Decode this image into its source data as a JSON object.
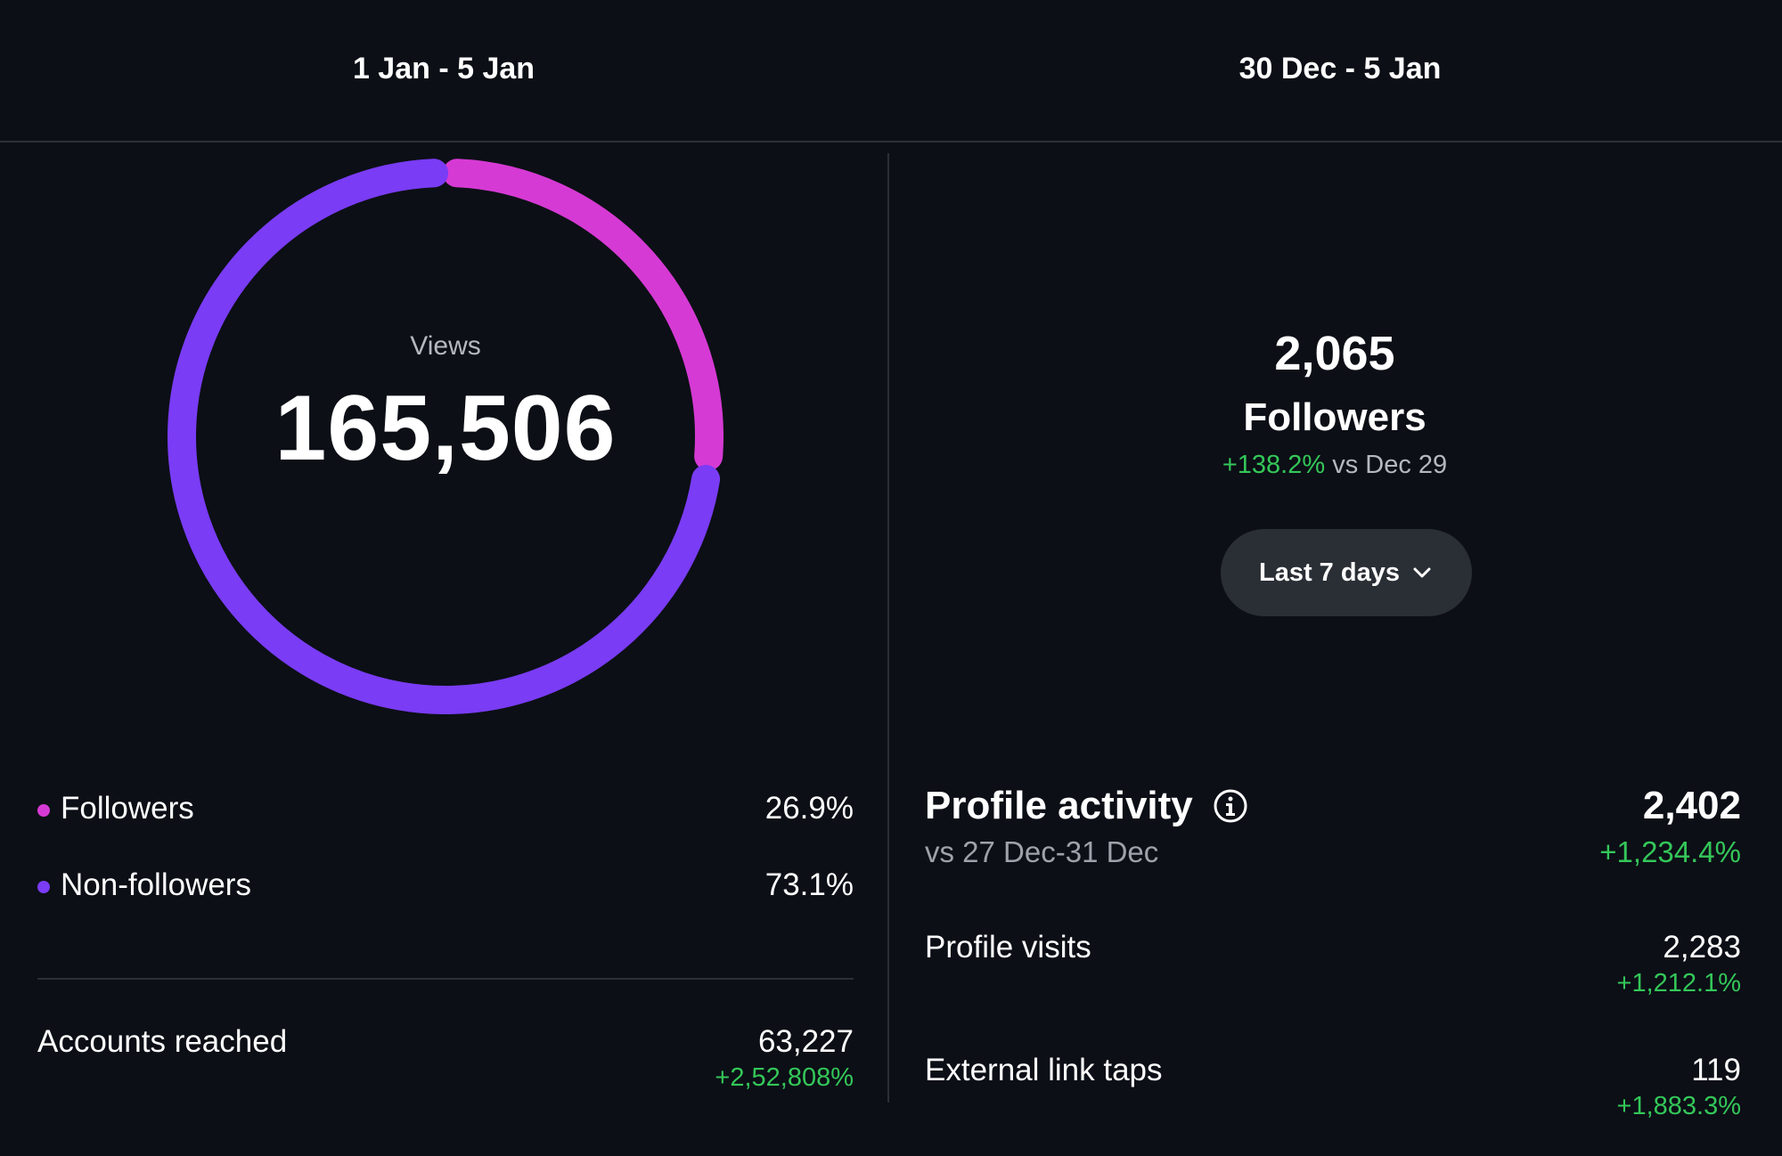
{
  "header": {
    "left_date_range": "1 Jan - 5 Jan",
    "right_date_range": "30 Dec - 5 Jan"
  },
  "views": {
    "label": "Views",
    "value": "165,506",
    "breakdown": [
      {
        "label": "Followers",
        "percent_text": "26.9%",
        "percent": 26.9,
        "color": "#d63ad4"
      },
      {
        "label": "Non-followers",
        "percent_text": "73.1%",
        "percent": 73.1,
        "color": "#7a3cf5"
      }
    ]
  },
  "accounts_reached": {
    "label": "Accounts reached",
    "value": "63,227",
    "change": "+2,52,808%"
  },
  "followers_summary": {
    "count": "2,065",
    "label": "Followers",
    "change": "+138.2%",
    "comparison": "vs Dec 29"
  },
  "range_selector": {
    "label": "Last 7 days",
    "icon": "chevron-down-icon"
  },
  "profile_activity": {
    "title": "Profile activity",
    "info_icon": "info-icon",
    "subtitle": "vs 27 Dec-31 Dec",
    "total": "2,402",
    "total_change": "+1,234.4%",
    "rows": [
      {
        "label": "Profile visits",
        "value": "2,283",
        "change": "+1,212.1%"
      },
      {
        "label": "External link taps",
        "value": "119",
        "change": "+1,883.3%"
      }
    ]
  },
  "colors": {
    "background": "#0c0f16",
    "positive": "#34c759",
    "followers_magenta": "#d63ad4",
    "non_followers_purple": "#7a3cf5",
    "button_bg": "#2a2e35"
  }
}
